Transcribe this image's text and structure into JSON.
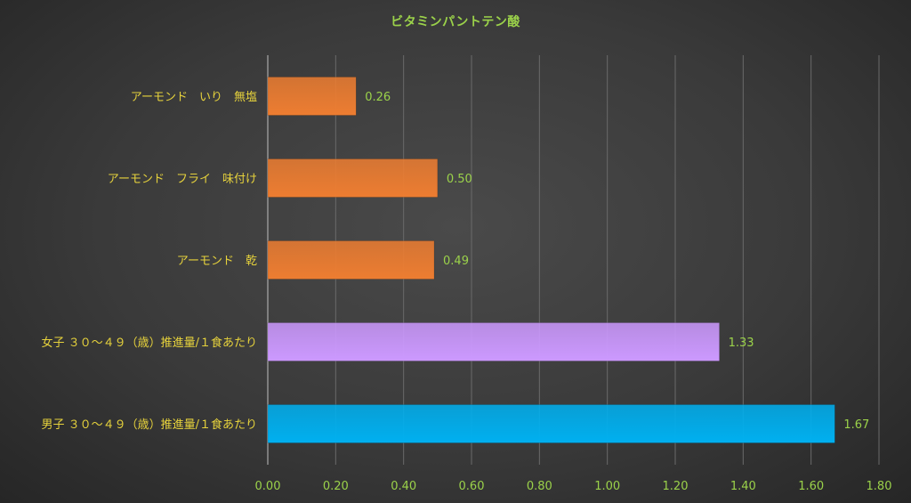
{
  "chart_data": {
    "type": "bar",
    "orientation": "horizontal",
    "title": "ビタミンパントテン酸",
    "categories": [
      "アーモンド　いり　無塩",
      "アーモンド　フライ　味付け",
      "アーモンド　乾",
      "女子 ３０～４９（歳）推進量/１食あたり",
      "男子 ３０～４９（歳）推進量/１食あたり"
    ],
    "values": [
      0.26,
      0.5,
      0.49,
      1.33,
      1.67
    ],
    "value_labels": [
      "0.26",
      "0.50",
      "0.49",
      "1.33",
      "1.67"
    ],
    "bar_colors": [
      "#ed7d31",
      "#ed7d31",
      "#ed7d31",
      "#cc99ff",
      "#00b0f0"
    ],
    "xlim": [
      0,
      1.8
    ],
    "x_ticks": [
      "0.00",
      "0.20",
      "0.40",
      "0.60",
      "0.80",
      "1.00",
      "1.20",
      "1.40",
      "1.60",
      "1.80"
    ],
    "xlabel": "",
    "ylabel": "",
    "grid": true,
    "legend": "none"
  },
  "colors": {
    "title": "#9bd24a",
    "category_text": "#e6d23c",
    "value_text": "#9bd24a",
    "tick_text": "#9bd24a",
    "gridline": "#6a6a6a",
    "axis": "#bfbfbf"
  }
}
